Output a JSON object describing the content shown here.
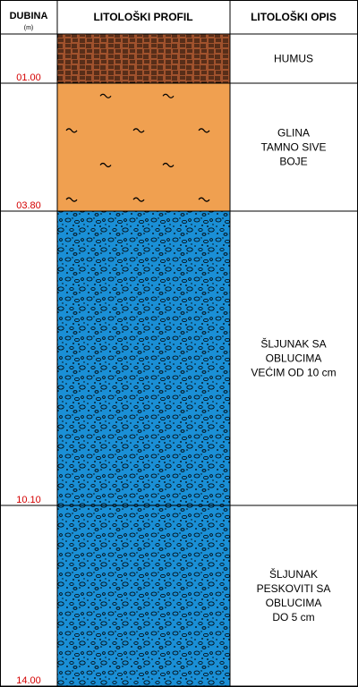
{
  "header": {
    "depth_title": "DUBINA",
    "depth_unit": "(m)",
    "profile_title": "LITOLOŠKI PROFIL",
    "description_title": "LITOLOŠKI OPIS"
  },
  "colors": {
    "border": "#000000",
    "depth_label": "#d40000",
    "humus_fill": "#a0522d",
    "clay_fill": "#f0a050",
    "gravel_fill": "#1a8fd6"
  },
  "layers": [
    {
      "name": "humus",
      "top_m": 0.0,
      "bottom_m": 1.0,
      "depth_label": "01.00",
      "pattern": "humus-hatch",
      "description": [
        "HUMUS"
      ]
    },
    {
      "name": "glina",
      "top_m": 1.0,
      "bottom_m": 3.8,
      "depth_label": "03.80",
      "pattern": "clay-tilde",
      "description": [
        "GLINA",
        "TAMNO SIVE",
        "BOJE"
      ]
    },
    {
      "name": "sljunak-oblucima",
      "top_m": 3.8,
      "bottom_m": 10.1,
      "depth_label": "10.10",
      "pattern": "gravel-dots",
      "description": [
        "ŠLJUNAK SA",
        "OBLUCIMA",
        "VEĆIM OD 10 cm"
      ]
    },
    {
      "name": "sljunak-peskoviti",
      "top_m": 10.1,
      "bottom_m": 14.0,
      "depth_label": "14.00",
      "pattern": "gravel-dots",
      "description": [
        "ŠLJUNAK",
        "PESKOVITI SA",
        "OBLUCIMA",
        "DO 5 cm"
      ]
    }
  ]
}
